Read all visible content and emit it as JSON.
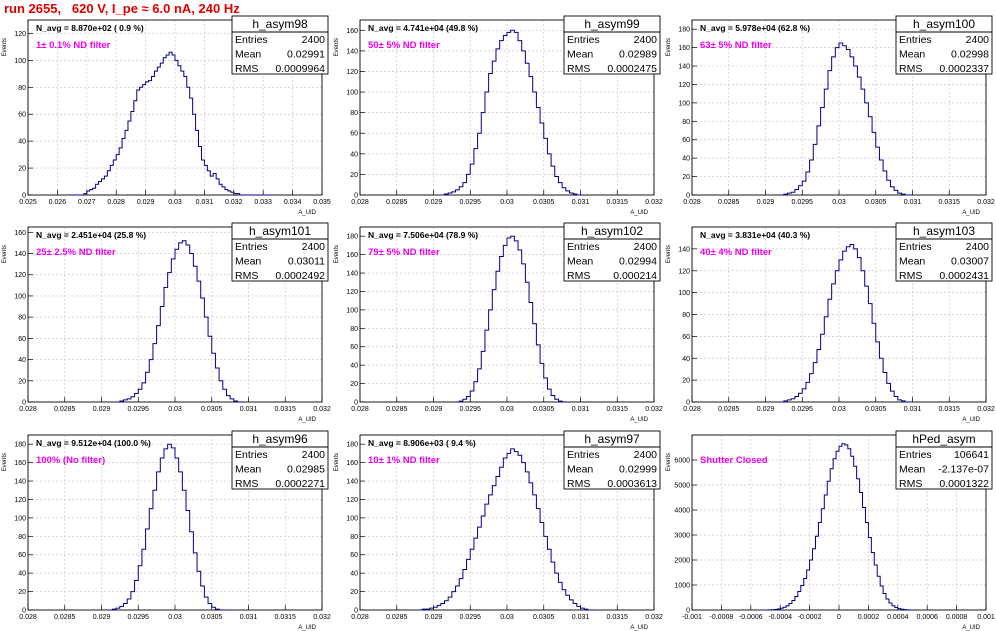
{
  "page_title": "run 2655,   620 V, I_pe ≈ 6.0 nA, 240 Hz",
  "colors": {
    "title": "#e00000",
    "filter_label": "#ee00ee",
    "histogram": "#000088",
    "grid": "#c8c8c8"
  },
  "stats_labels": {
    "entries": "Entries",
    "mean": "Mean",
    "rms": "RMS"
  },
  "chart_data": [
    {
      "type": "histogram",
      "name": "h_asym98",
      "n_avg": "N_avg = 8.870e+02 ( 0.9 %)",
      "filter": "1± 0.1% ND filter",
      "stats": {
        "entries": "2400",
        "mean": "0.02991",
        "rms": "0.0009964"
      },
      "xlabel": "A_UID",
      "ylabel": "Events",
      "xlim": [
        0.025,
        0.035
      ],
      "ylim": [
        0,
        130
      ],
      "xticks": [
        "0.025",
        "0.026",
        "0.027",
        "0.028",
        "0.029",
        "0.03",
        "0.031",
        "0.032",
        "0.033",
        "0.034",
        "0.035"
      ],
      "yticks": [
        0,
        20,
        40,
        60,
        80,
        100,
        120
      ],
      "bins": {
        "start": 0.0265,
        "width": 0.0001,
        "counts": [
          0,
          0,
          0,
          0,
          1,
          3,
          4,
          5,
          8,
          10,
          12,
          14,
          18,
          22,
          26,
          30,
          35,
          42,
          48,
          55,
          62,
          70,
          78,
          80,
          82,
          84,
          85,
          88,
          92,
          95,
          98,
          102,
          104,
          106,
          104,
          100,
          96,
          92,
          88,
          80,
          72,
          60,
          48,
          36,
          26,
          22,
          18,
          14,
          16,
          12,
          8,
          6,
          4,
          3,
          2,
          1,
          1,
          0,
          0,
          0,
          0,
          0,
          0,
          0,
          0,
          0,
          0,
          0
        ]
      }
    },
    {
      "type": "histogram",
      "name": "h_asym99",
      "n_avg": "N_avg = 4.741e+04 (49.8 %)",
      "filter": "50± 5% ND filter",
      "stats": {
        "entries": "2400",
        "mean": "0.02989",
        "rms": "0.0002475"
      },
      "xlabel": "A_UID",
      "ylabel": "Events",
      "xlim": [
        0.028,
        0.032
      ],
      "ylim": [
        0,
        170
      ],
      "xticks": [
        "0.028",
        "0.0285",
        "0.029",
        "0.0295",
        "0.03",
        "0.0305",
        "0.031",
        "0.0315",
        "0.032"
      ],
      "yticks": [
        0,
        20,
        40,
        60,
        80,
        100,
        120,
        140,
        160
      ],
      "bins": {
        "start": 0.0291,
        "width": 5e-05,
        "counts": [
          0,
          1,
          2,
          3,
          5,
          8,
          12,
          20,
          30,
          45,
          60,
          80,
          100,
          118,
          130,
          142,
          150,
          155,
          158,
          160,
          158,
          150,
          140,
          128,
          115,
          100,
          85,
          70,
          55,
          40,
          28,
          18,
          12,
          7,
          4,
          2,
          1,
          0,
          0
        ]
      }
    },
    {
      "type": "histogram",
      "name": "h_asym100",
      "n_avg": "N_avg = 5.978e+04 (62.8 %)",
      "filter": "63± 5% ND filter",
      "stats": {
        "entries": "2400",
        "mean": "0.02998",
        "rms": "0.0002337"
      },
      "xlabel": "A_UID",
      "ylabel": "Events",
      "xlim": [
        0.028,
        0.032
      ],
      "ylim": [
        0,
        190
      ],
      "xticks": [
        "0.028",
        "0.0285",
        "0.029",
        "0.0295",
        "0.03",
        "0.0305",
        "0.031",
        "0.0315",
        "0.032"
      ],
      "yticks": [
        0,
        20,
        40,
        60,
        80,
        100,
        120,
        140,
        160,
        180
      ],
      "bins": {
        "start": 0.0292,
        "width": 5e-05,
        "counts": [
          0,
          1,
          2,
          3,
          6,
          10,
          15,
          25,
          38,
          55,
          75,
          95,
          115,
          135,
          150,
          160,
          165,
          162,
          158,
          150,
          140,
          128,
          115,
          100,
          85,
          68,
          52,
          38,
          26,
          16,
          9,
          5,
          2,
          1,
          0,
          0
        ]
      }
    },
    {
      "type": "histogram",
      "name": "h_asym101",
      "n_avg": "N_avg = 2.451e+04 (25.8 %)",
      "filter": "25± 2.5% ND filter",
      "stats": {
        "entries": "2400",
        "mean": "0.03011",
        "rms": "0.0002492"
      },
      "xlabel": "A_UID",
      "ylabel": "Events",
      "xlim": [
        0.028,
        0.032
      ],
      "ylim": [
        0,
        165
      ],
      "xticks": [
        "0.028",
        "0.0285",
        "0.029",
        "0.0295",
        "0.03",
        "0.0305",
        "0.031",
        "0.0315",
        "0.032"
      ],
      "yticks": [
        0,
        20,
        40,
        60,
        80,
        100,
        120,
        140,
        160
      ],
      "bins": {
        "start": 0.0292,
        "width": 5e-05,
        "counts": [
          0,
          1,
          2,
          3,
          5,
          8,
          12,
          18,
          28,
          40,
          55,
          72,
          90,
          108,
          122,
          135,
          144,
          150,
          152,
          148,
          140,
          128,
          114,
          98,
          80,
          62,
          46,
          32,
          20,
          12,
          6,
          3,
          1,
          0,
          0
        ]
      }
    },
    {
      "type": "histogram",
      "name": "h_asym102",
      "n_avg": "N_avg = 7.506e+04 (78.9 %)",
      "filter": "79± 5% ND filter",
      "stats": {
        "entries": "2400",
        "mean": "0.02994",
        "rms": "0.000214"
      },
      "xlabel": "A_UID",
      "ylabel": "Events",
      "xlim": [
        0.028,
        0.032
      ],
      "ylim": [
        0,
        190
      ],
      "xticks": [
        "0.028",
        "0.0285",
        "0.029",
        "0.0295",
        "0.03",
        "0.0305",
        "0.031",
        "0.0315",
        "0.032"
      ],
      "yticks": [
        0,
        20,
        40,
        60,
        80,
        100,
        120,
        140,
        160,
        180
      ],
      "bins": {
        "start": 0.0293,
        "width": 5e-05,
        "counts": [
          0,
          1,
          3,
          6,
          12,
          22,
          36,
          55,
          78,
          100,
          122,
          142,
          158,
          170,
          178,
          180,
          175,
          165,
          150,
          130,
          108,
          85,
          62,
          42,
          26,
          14,
          7,
          3,
          1,
          0,
          0
        ]
      }
    },
    {
      "type": "histogram",
      "name": "h_asym103",
      "n_avg": "N_avg = 3.831e+04 (40.3 %)",
      "filter": "40± 4% ND filter",
      "stats": {
        "entries": "2400",
        "mean": "0.03007",
        "rms": "0.0002431"
      },
      "xlabel": "A_UID",
      "ylabel": "Events",
      "xlim": [
        0.028,
        0.032
      ],
      "ylim": [
        0,
        160
      ],
      "xticks": [
        "0.028",
        "0.0285",
        "0.029",
        "0.0295",
        "0.03",
        "0.0305",
        "0.031",
        "0.0315",
        "0.032"
      ],
      "yticks": [
        0,
        20,
        40,
        60,
        80,
        100,
        120,
        140
      ],
      "bins": {
        "start": 0.0292,
        "width": 5e-05,
        "counts": [
          0,
          1,
          2,
          3,
          5,
          8,
          12,
          18,
          26,
          36,
          48,
          62,
          78,
          94,
          108,
          120,
          130,
          138,
          142,
          144,
          140,
          132,
          120,
          106,
          90,
          72,
          55,
          40,
          27,
          17,
          10,
          5,
          2,
          1,
          0,
          0
        ]
      }
    },
    {
      "type": "histogram",
      "name": "h_asym96",
      "n_avg": "N_avg = 9.512e+04 (100.0 %)",
      "filter": "100% (No filter)",
      "stats": {
        "entries": "2400",
        "mean": "0.02985",
        "rms": "0.0002271"
      },
      "xlabel": "A_UID",
      "ylabel": "Events",
      "xlim": [
        0.028,
        0.032
      ],
      "ylim": [
        0,
        190
      ],
      "xticks": [
        "0.028",
        "0.0285",
        "0.029",
        "0.0295",
        "0.03",
        "0.0305",
        "0.031",
        "0.0315",
        "0.032"
      ],
      "yticks": [
        0,
        20,
        40,
        60,
        80,
        100,
        120,
        140,
        160,
        180
      ],
      "bins": {
        "start": 0.0291,
        "width": 5e-05,
        "counts": [
          0,
          1,
          2,
          4,
          7,
          12,
          20,
          32,
          48,
          66,
          88,
          110,
          130,
          150,
          165,
          175,
          180,
          176,
          165,
          150,
          130,
          108,
          85,
          62,
          42,
          26,
          14,
          7,
          3,
          1,
          0,
          0
        ]
      }
    },
    {
      "type": "histogram",
      "name": "h_asym97",
      "n_avg": "N_avg = 8.906e+03 ( 9.4 %)",
      "filter": "10± 1% ND filter",
      "stats": {
        "entries": "2400",
        "mean": "0.02999",
        "rms": "0.0003613"
      },
      "xlabel": "A_UID",
      "ylabel": "Events",
      "xlim": [
        0.028,
        0.032
      ],
      "ylim": [
        0,
        190
      ],
      "xticks": [
        "0.028",
        "0.0285",
        "0.029",
        "0.0295",
        "0.03",
        "0.0305",
        "0.031",
        "0.0315",
        "0.032"
      ],
      "yticks": [
        0,
        20,
        40,
        60,
        80,
        100,
        120,
        140,
        160,
        180
      ],
      "bins": {
        "start": 0.0288,
        "width": 5e-05,
        "counts": [
          0,
          1,
          1,
          2,
          3,
          5,
          7,
          10,
          14,
          20,
          26,
          34,
          44,
          55,
          66,
          78,
          90,
          102,
          115,
          125,
          135,
          145,
          155,
          165,
          170,
          175,
          172,
          168,
          160,
          150,
          138,
          125,
          110,
          95,
          80,
          66,
          52,
          40,
          30,
          22,
          16,
          11,
          7,
          4,
          2,
          1,
          0,
          0
        ]
      }
    },
    {
      "type": "histogram",
      "name": "hPed_asym",
      "n_avg": "",
      "filter": "Shutter Closed",
      "stats": {
        "entries": "106641",
        "mean": "-2.137e-07",
        "rms": "0.0001322"
      },
      "xlabel": "A_UID",
      "ylabel": "Events",
      "xlim": [
        -0.001,
        0.001
      ],
      "ylim": [
        0,
        7000
      ],
      "xticks": [
        "-0.001",
        "-0.0008",
        "-0.0006",
        "-0.0004",
        "-0.0002",
        "0",
        "0.0002",
        "0.0004",
        "0.0006",
        "0.0008",
        "0.001"
      ],
      "yticks": [
        0,
        1000,
        2000,
        3000,
        4000,
        5000,
        6000
      ],
      "bins": {
        "start": -0.0005,
        "width": 2e-05,
        "counts": [
          0,
          5,
          10,
          20,
          40,
          70,
          110,
          170,
          260,
          380,
          540,
          740,
          980,
          1260,
          1600,
          2000,
          2450,
          2950,
          3500,
          4050,
          4600,
          5150,
          5650,
          6050,
          6350,
          6550,
          6650,
          6600,
          6450,
          6150,
          5750,
          5250,
          4700,
          4100,
          3500,
          2900,
          2300,
          1800,
          1350,
          960,
          660,
          440,
          280,
          170,
          100,
          55,
          30,
          15,
          6,
          2,
          0
        ]
      }
    }
  ]
}
